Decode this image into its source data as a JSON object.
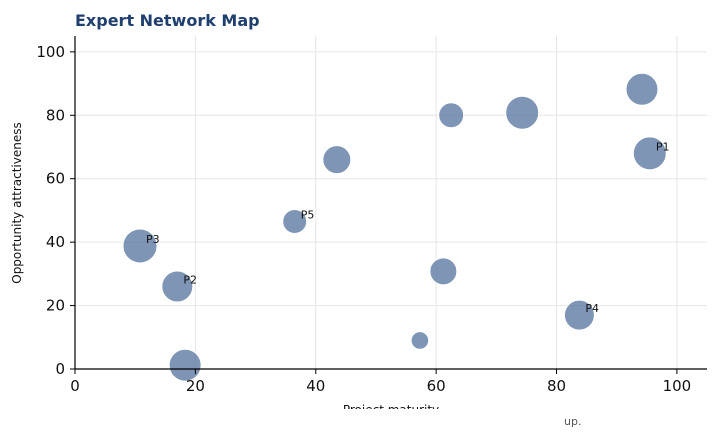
{
  "chart_data": {
    "type": "scatter",
    "title": "Expert Network Map",
    "xlabel": "Project maturity",
    "ylabel": "Opportunity attractiveness",
    "xlim": [
      0,
      105
    ],
    "ylim": [
      0,
      105
    ],
    "xticks": [
      0,
      20,
      40,
      60,
      80,
      100
    ],
    "yticks": [
      0,
      20,
      40,
      60,
      80,
      100
    ],
    "grid": true,
    "footnote": "up.",
    "colors": {
      "bubble": "#5a77a0",
      "bubble_edge": "#ffffff",
      "grid": "#e6e6e6",
      "axis": "#000000"
    },
    "points": [
      {
        "x": 94.2,
        "y": 88.2,
        "size": 0.9,
        "label": ""
      },
      {
        "x": 62.5,
        "y": 80.0,
        "size": 0.55,
        "label": ""
      },
      {
        "x": 74.3,
        "y": 80.8,
        "size": 0.95,
        "label": ""
      },
      {
        "x": 95.5,
        "y": 68.0,
        "size": 0.95,
        "label": "P1"
      },
      {
        "x": 43.5,
        "y": 66.0,
        "size": 0.7,
        "label": ""
      },
      {
        "x": 36.5,
        "y": 46.5,
        "size": 0.5,
        "label": "P5"
      },
      {
        "x": 10.8,
        "y": 38.8,
        "size": 1.0,
        "label": "P3"
      },
      {
        "x": 17.0,
        "y": 26.0,
        "size": 0.85,
        "label": "P2"
      },
      {
        "x": 61.2,
        "y": 30.8,
        "size": 0.65,
        "label": ""
      },
      {
        "x": 83.8,
        "y": 17.0,
        "size": 0.8,
        "label": "P4"
      },
      {
        "x": 57.3,
        "y": 9.0,
        "size": 0.18,
        "label": ""
      },
      {
        "x": 18.3,
        "y": 1.2,
        "size": 0.9,
        "label": ""
      }
    ]
  }
}
